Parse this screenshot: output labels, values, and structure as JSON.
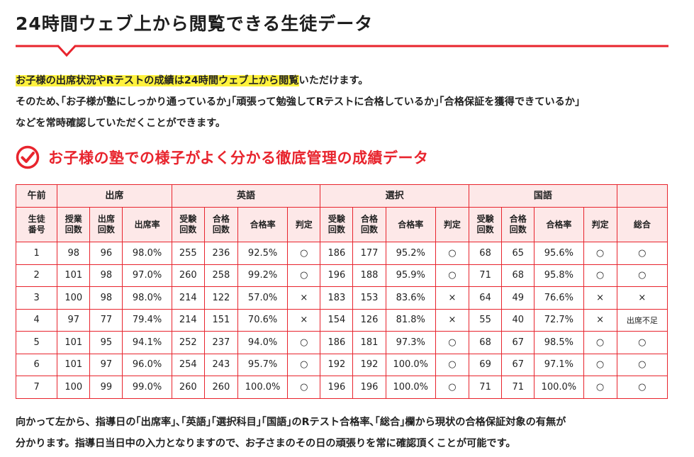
{
  "page": {
    "title": "24時間ウェブ上から閲覧できる生徒データ",
    "intro_highlight": "お子様の出席状況やRテストの成績は24時間ウェブ上から閲覧",
    "intro_line1_rest": "いただけます。",
    "intro_line2": "そのため､｢お子様が塾にしっかり通っているか｣｢頑張って勉強してRテストに合格しているか｣｢合格保証を獲得できているか｣",
    "intro_line3": "などを常時確認していただくことができます。",
    "section_title": "お子様の塾での様子がよく分かる徹底管理の成績データ",
    "bottom_line1": "向かって左から、指導日の｢出席率｣､｢英語｣｢選択科目｣｢国語｣のRテスト合格率､｢総合｣欄から現状の合格保証対象の有無が",
    "bottom_line2": "分かります。指導日当日中の入力となりますので、お子さまのその日の頑張りを常に確認頂くことが可能です。",
    "accent_color": "#e8242d",
    "header_bg": "#fde8e8",
    "highlight_color": "#fff23e"
  },
  "table": {
    "group_headers": {
      "session": "午前",
      "attendance": "出席",
      "english": "英語",
      "elective": "選択",
      "japanese": "国語",
      "overall": ""
    },
    "sub_headers": {
      "student_no_1": "生徒",
      "student_no_2": "番号",
      "lessons_1": "授業",
      "lessons_2": "回数",
      "attend_1": "出席",
      "attend_2": "回数",
      "attend_rate": "出席率",
      "taken_1": "受験",
      "taken_2": "回数",
      "passed_1": "合格",
      "passed_2": "回数",
      "pass_rate": "合格率",
      "judgement": "判定",
      "overall": "総合"
    },
    "rows": [
      [
        "1",
        "98",
        "96",
        "98.0%",
        "255",
        "236",
        "92.5%",
        "○",
        "186",
        "177",
        "95.2%",
        "○",
        "68",
        "65",
        "95.6%",
        "○",
        "○"
      ],
      [
        "2",
        "101",
        "98",
        "97.0%",
        "260",
        "258",
        "99.2%",
        "○",
        "196",
        "188",
        "95.9%",
        "○",
        "71",
        "68",
        "95.8%",
        "○",
        "○"
      ],
      [
        "3",
        "100",
        "98",
        "98.0%",
        "214",
        "122",
        "57.0%",
        "×",
        "183",
        "153",
        "83.6%",
        "×",
        "64",
        "49",
        "76.6%",
        "×",
        "×"
      ],
      [
        "4",
        "97",
        "77",
        "79.4%",
        "214",
        "151",
        "70.6%",
        "×",
        "154",
        "126",
        "81.8%",
        "×",
        "55",
        "40",
        "72.7%",
        "×",
        "出席不足"
      ],
      [
        "5",
        "101",
        "95",
        "94.1%",
        "252",
        "237",
        "94.0%",
        "○",
        "186",
        "181",
        "97.3%",
        "○",
        "68",
        "67",
        "98.5%",
        "○",
        "○"
      ],
      [
        "6",
        "101",
        "97",
        "96.0%",
        "254",
        "243",
        "95.7%",
        "○",
        "192",
        "192",
        "100.0%",
        "○",
        "69",
        "67",
        "97.1%",
        "○",
        "○"
      ],
      [
        "7",
        "100",
        "99",
        "99.0%",
        "260",
        "260",
        "100.0%",
        "○",
        "196",
        "196",
        "100.0%",
        "○",
        "71",
        "71",
        "100.0%",
        "○",
        "○"
      ]
    ]
  }
}
